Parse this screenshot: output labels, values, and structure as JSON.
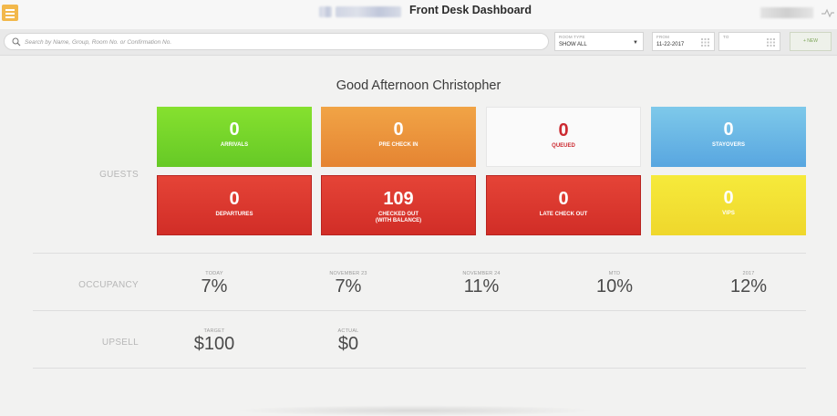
{
  "header": {
    "title": "Front Desk Dashboard",
    "menu_icon": "hamburger-icon",
    "activity_icon": "activity-icon"
  },
  "filters": {
    "search_placeholder": "Search by Name, Group, Room No. or Confirmation No.",
    "room_type_label": "ROOM TYPE",
    "room_type_value": "SHOW ALL",
    "from_label": "FROM",
    "from_value": "11-22-2017",
    "to_label": "TO",
    "to_value": "",
    "new_label": "+ NEW"
  },
  "greeting": "Good Afternoon Christopher",
  "guests": {
    "label": "GUESTS",
    "tiles": [
      {
        "value": "0",
        "label": "ARRIVALS",
        "color": "#74d52a"
      },
      {
        "value": "0",
        "label": "PRE CHECK IN",
        "color": "#ea9a3c"
      },
      {
        "value": "0",
        "label": "QUEUED",
        "color": "#cc2a30"
      },
      {
        "value": "0",
        "label": "STAYOVERS",
        "color": "#6fb8e6"
      },
      {
        "value": "0",
        "label": "DEPARTURES",
        "color": "#dc3a30"
      },
      {
        "value": "109",
        "label": "CHECKED OUT",
        "label2": "(WITH BALANCE)",
        "color": "#dc3a30"
      },
      {
        "value": "0",
        "label": "LATE CHECK OUT",
        "color": "#dc3a30"
      },
      {
        "value": "0",
        "label": "VIPS",
        "color": "#f3e236"
      }
    ]
  },
  "occupancy": {
    "label": "OCCUPANCY",
    "stats": [
      {
        "label": "TODAY",
        "value": "7%"
      },
      {
        "label": "NOVEMBER 23",
        "value": "7%"
      },
      {
        "label": "NOVEMBER 24",
        "value": "11%"
      },
      {
        "label": "MTD",
        "value": "10%"
      },
      {
        "label": "2017",
        "value": "12%"
      }
    ]
  },
  "upsell": {
    "label": "UPSELL",
    "stats": [
      {
        "label": "TARGET",
        "value": "$100"
      },
      {
        "label": "ACTUAL",
        "value": "$0"
      }
    ]
  }
}
